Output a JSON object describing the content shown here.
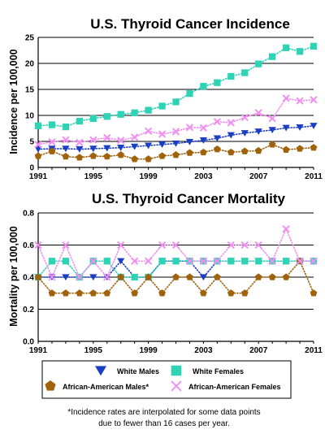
{
  "chart_data": [
    {
      "type": "line",
      "title": "U.S. Thyroid Cancer Incidence",
      "ylabel": "Incidence per 100,000",
      "xlabel": "",
      "xlim": [
        1991,
        2011
      ],
      "ylim": [
        0,
        25
      ],
      "grid": true,
      "x_ticks": [
        "1991",
        "1995",
        "1999",
        "2003",
        "2007",
        "2011"
      ],
      "y_ticks": [
        "0",
        "5",
        "10",
        "15",
        "20",
        "25"
      ],
      "x": [
        1991,
        1992,
        1993,
        1994,
        1995,
        1996,
        1997,
        1998,
        1999,
        2000,
        2001,
        2002,
        2003,
        2004,
        2005,
        2006,
        2007,
        2008,
        2009,
        2010,
        2011
      ],
      "series": [
        {
          "name": "White Males",
          "values": [
            3.5,
            3.6,
            3.6,
            3.5,
            3.6,
            3.7,
            3.8,
            4.0,
            4.2,
            4.4,
            4.6,
            4.9,
            5.2,
            5.6,
            6.2,
            6.6,
            6.9,
            7.2,
            7.6,
            7.7,
            8.0
          ]
        },
        {
          "name": "White Females",
          "values": [
            8.0,
            8.2,
            7.8,
            8.9,
            9.4,
            9.8,
            10.2,
            10.5,
            11.0,
            11.8,
            12.6,
            14.2,
            15.6,
            16.3,
            17.5,
            18.2,
            19.9,
            21.3,
            23.0,
            22.3,
            23.3
          ]
        },
        {
          "name": "African-American Males*",
          "values": [
            2.2,
            3.1,
            2.1,
            1.9,
            2.2,
            2.1,
            2.4,
            1.6,
            1.6,
            2.2,
            2.4,
            2.8,
            2.9,
            3.5,
            2.9,
            3.1,
            3.2,
            4.4,
            3.4,
            3.6,
            3.8
          ]
        },
        {
          "name": "African-American Females",
          "values": [
            4.4,
            4.9,
            5.3,
            4.8,
            5.3,
            5.7,
            5.2,
            5.8,
            7.0,
            6.4,
            6.9,
            7.7,
            7.6,
            8.8,
            8.6,
            9.6,
            10.5,
            9.4,
            13.3,
            12.8,
            13.0
          ]
        }
      ]
    },
    {
      "type": "line",
      "title": "U.S. Thyroid Cancer Mortality",
      "ylabel": "Mortality per 100,000",
      "xlabel": "",
      "xlim": [
        1991,
        2011
      ],
      "ylim": [
        0,
        0.8
      ],
      "grid": true,
      "x_ticks": [
        "1991",
        "1995",
        "1999",
        "2003",
        "2007",
        "2011"
      ],
      "y_ticks": [
        "0.0",
        "0.2",
        "0.4",
        "0.6",
        "0.8"
      ],
      "x": [
        1991,
        1992,
        1993,
        1994,
        1995,
        1996,
        1997,
        1998,
        1999,
        2000,
        2001,
        2002,
        2003,
        2004,
        2005,
        2006,
        2007,
        2008,
        2009,
        2010,
        2011
      ],
      "series": [
        {
          "name": "White Males",
          "values": [
            0.4,
            0.4,
            0.4,
            0.4,
            0.4,
            0.4,
            0.5,
            0.4,
            0.4,
            0.5,
            0.5,
            0.5,
            0.4,
            0.5,
            0.5,
            0.5,
            0.5,
            0.5,
            0.5,
            0.5,
            0.5
          ]
        },
        {
          "name": "White Females",
          "values": [
            0.4,
            0.5,
            0.5,
            0.4,
            0.5,
            0.5,
            0.4,
            0.4,
            0.4,
            0.5,
            0.5,
            0.5,
            0.5,
            0.5,
            0.5,
            0.5,
            0.5,
            0.5,
            0.5,
            0.5,
            0.5
          ]
        },
        {
          "name": "African-American Males*",
          "values": [
            0.4,
            0.3,
            0.3,
            0.3,
            0.3,
            0.3,
            0.4,
            0.3,
            0.4,
            0.3,
            0.4,
            0.4,
            0.3,
            0.4,
            0.3,
            0.3,
            0.4,
            0.4,
            0.4,
            0.5,
            0.3
          ]
        },
        {
          "name": "African-American Females",
          "values": [
            0.6,
            0.4,
            0.6,
            0.4,
            0.5,
            0.4,
            0.6,
            0.5,
            0.5,
            0.6,
            0.6,
            0.5,
            0.5,
            0.5,
            0.6,
            0.6,
            0.6,
            0.5,
            0.7,
            0.5,
            0.5
          ]
        }
      ]
    }
  ],
  "legend": {
    "placement": "bottom",
    "items": [
      {
        "label": "White Males",
        "marker": "triangle-down",
        "color": "#1a3fc4"
      },
      {
        "label": "White Females",
        "marker": "square",
        "color": "#2ed3b6"
      },
      {
        "label": "African-American Males*",
        "marker": "pentagon",
        "color": "#a0620b"
      },
      {
        "label": "African-American Females",
        "marker": "x",
        "color": "#f08ff2"
      }
    ]
  },
  "footnote": {
    "line1": "*Incidence rates are interpolated for some data points",
    "line2": "due to fewer than 16 cases per year."
  }
}
